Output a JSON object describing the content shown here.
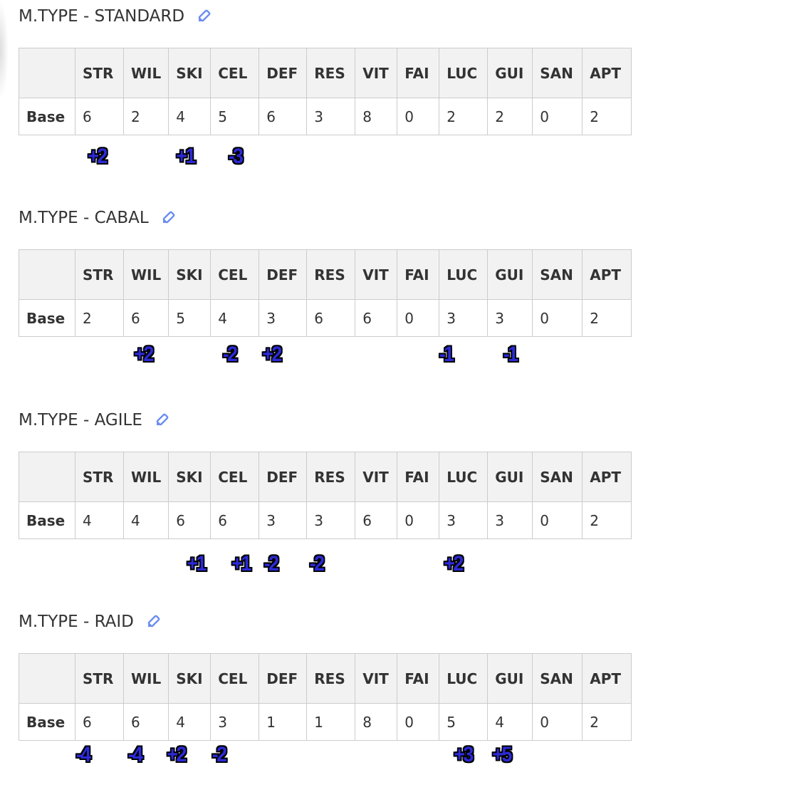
{
  "columns": [
    "",
    "STR",
    "WIL",
    "SKI",
    "CEL",
    "DEF",
    "RES",
    "VIT",
    "FAI",
    "LUC",
    "GUI",
    "SAN",
    "APT"
  ],
  "row_label": "Base",
  "edit_icon": "pencil-icon",
  "accent": "#6b8cf0",
  "annotation_color": "#2c2ad8",
  "sections": [
    {
      "title": "M.TYPE - STANDARD",
      "values": [
        "6",
        "2",
        "4",
        "5",
        "6",
        "3",
        "8",
        "0",
        "2",
        "2",
        "0",
        "2"
      ],
      "annotations": [
        {
          "text": "+2",
          "col": "STR"
        },
        {
          "text": "+1",
          "col": "SKI"
        },
        {
          "text": "-3",
          "col": "CEL"
        }
      ]
    },
    {
      "title": "M.TYPE - CABAL",
      "values": [
        "2",
        "6",
        "5",
        "4",
        "3",
        "6",
        "6",
        "0",
        "3",
        "3",
        "0",
        "2"
      ],
      "annotations": [
        {
          "text": "+2",
          "col": "WIL"
        },
        {
          "text": "-2",
          "col": "CEL"
        },
        {
          "text": "+2",
          "col": "DEF"
        },
        {
          "text": "-1",
          "col": "LUC"
        },
        {
          "text": "-1",
          "col": "GUI"
        }
      ]
    },
    {
      "title": "M.TYPE - AGILE",
      "values": [
        "4",
        "4",
        "6",
        "6",
        "3",
        "3",
        "6",
        "0",
        "3",
        "3",
        "0",
        "2"
      ],
      "annotations": [
        {
          "text": "+1",
          "col": "SKI"
        },
        {
          "text": "+1",
          "col": "CEL"
        },
        {
          "text": "-2",
          "col": "CEL/DEF"
        },
        {
          "text": "-2",
          "col": "RES"
        },
        {
          "text": "+2",
          "col": "LUC"
        }
      ]
    },
    {
      "title": "M.TYPE - RAID",
      "values": [
        "6",
        "6",
        "4",
        "3",
        "1",
        "1",
        "8",
        "0",
        "5",
        "4",
        "0",
        "2"
      ],
      "annotations": [
        {
          "text": "-4",
          "col": "STR"
        },
        {
          "text": "-4",
          "col": "WIL"
        },
        {
          "text": "+2",
          "col": "SKI"
        },
        {
          "text": "-2",
          "col": "CEL"
        },
        {
          "text": "+3",
          "col": "LUC"
        },
        {
          "text": "+5",
          "col": "GUI"
        }
      ]
    }
  ]
}
